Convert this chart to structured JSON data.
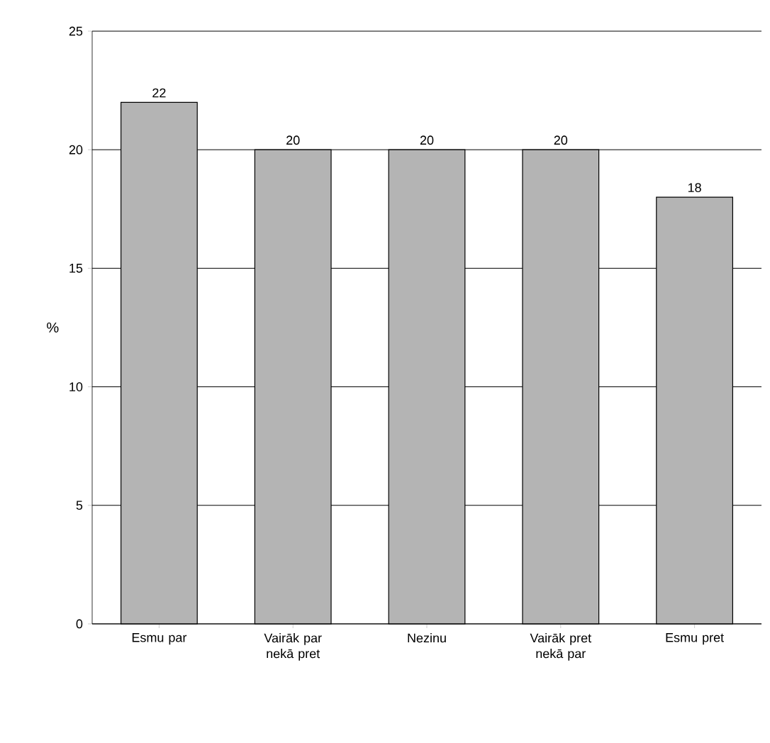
{
  "chart_data": {
    "type": "bar",
    "ylabel": "%",
    "categories": [
      "Esmu par",
      "Vairāk par nekā pret",
      "Nezinu",
      "Vairāk pret nekā par",
      "Esmu pret"
    ],
    "values": [
      22,
      20,
      20,
      20,
      18
    ],
    "color": "#b4b4b4",
    "ylim": [
      0,
      25
    ],
    "yticks": [
      0,
      5,
      10,
      15,
      20,
      25
    ],
    "grid": "y",
    "data_labels": true
  }
}
